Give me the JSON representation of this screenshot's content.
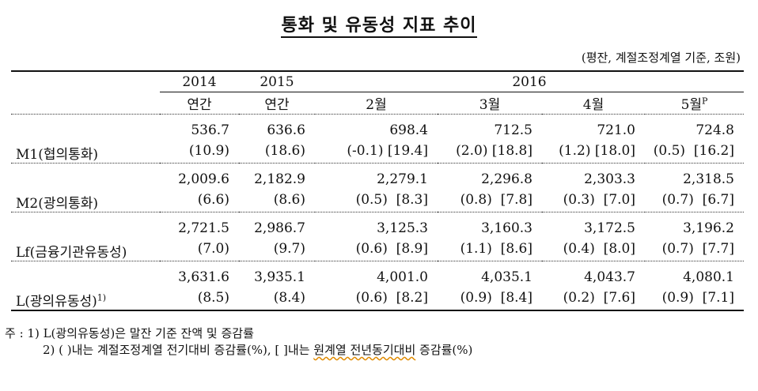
{
  "title": "통화 및 유동성 지표 추이",
  "unit": "(평잔, 계절조정계열 기준, 조원)",
  "header": {
    "year_2014": "2014",
    "year_2015": "2015",
    "year_2016": "2016",
    "sub": [
      "연간",
      "연간",
      "2월",
      "3월",
      "4월",
      "5월"
    ],
    "may_mark": "P"
  },
  "rows": [
    {
      "label": "M1(협의통화)",
      "sup": "",
      "values": [
        "536.7",
        "636.6",
        "698.4",
        "712.5",
        "721.0",
        "724.8"
      ],
      "changes": [
        "(10.9)",
        "(18.6)",
        "(-0.1) [19.4]",
        "(2.0) [18.8]",
        "(1.2) [18.0]",
        "(0.5)  [16.2]"
      ]
    },
    {
      "label": "M2(광의통화)",
      "sup": "",
      "values": [
        "2,009.6",
        "2,182.9",
        "2,279.1",
        "2,296.8",
        "2,303.3",
        "2,318.5"
      ],
      "changes": [
        "(6.6)",
        "(8.6)",
        "(0.5)  [8.3]",
        "(0.8)  [7.8]",
        "(0.3)  [7.0]",
        "(0.7)  [6.7]"
      ]
    },
    {
      "label": "Lf(금융기관유동성)",
      "sup": "",
      "values": [
        "2,721.5",
        "2,986.7",
        "3,125.3",
        "3,160.3",
        "3,172.5",
        "3,196.2"
      ],
      "changes": [
        "(7.0)",
        "(9.7)",
        "(0.6)  [8.9]",
        "(1.1)  [8.6]",
        "(0.4)  [8.0]",
        "(0.7)  [7.7]"
      ]
    },
    {
      "label": "L(광의유동성)",
      "sup": "1)",
      "values": [
        "3,631.6",
        "3,935.1",
        "4,001.0",
        "4,035.1",
        "4,043.7",
        "4,080.1"
      ],
      "changes": [
        "(8.5)",
        "(8.4)",
        "(0.6)  [8.2]",
        "(0.9)  [8.4]",
        "(0.2)  [7.6]",
        "(0.9)  [7.1]"
      ]
    }
  ],
  "notes": {
    "prefix": "주 :",
    "n1": "1) L(광의유동성)은 말잔 기준 잔액 및 증감률",
    "n2a": "2) (     )내는 계절조정계열 전기대비 증감률(%), [     ]내는 ",
    "n2b": "원계열 전년동기대비",
    "n2c": " 증감률(%)"
  }
}
